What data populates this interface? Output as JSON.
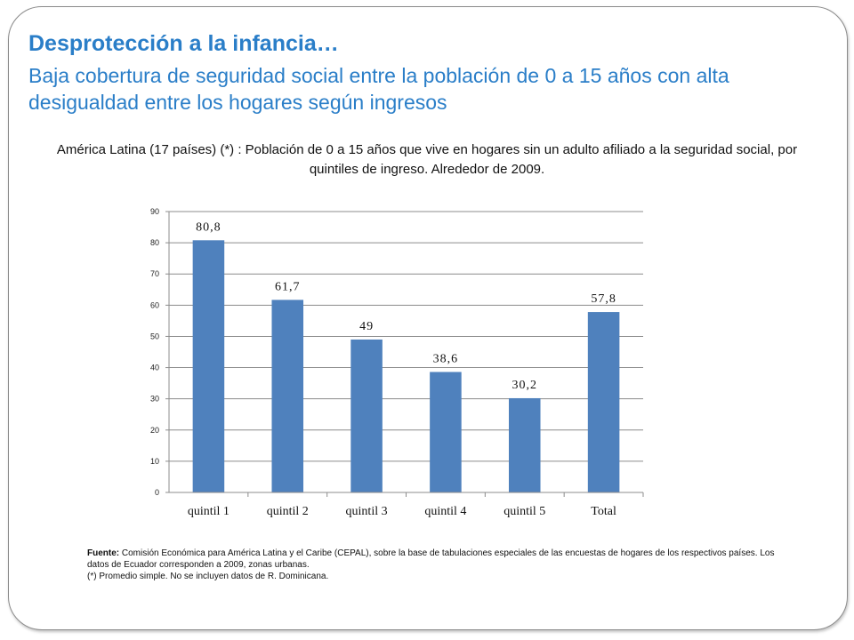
{
  "slide": {
    "title": "Desprotección a la infancia…",
    "subtitle": "Baja cobertura de seguridad social entre la población de 0 a 15 años con alta desigualdad entre los hogares según ingresos",
    "caption": "América Latina (17 países) (*) : Población de 0 a 15 años que vive en hogares sin un adulto afiliado a la seguridad social, por quintiles de ingreso. Alrededor de 2009."
  },
  "chart_data": {
    "type": "bar",
    "categories": [
      "quintil 1",
      "quintil 2",
      "quintil 3",
      "quintil 4",
      "quintil 5",
      "Total"
    ],
    "values": [
      80.8,
      61.7,
      49,
      38.6,
      30.2,
      57.8
    ],
    "data_labels": [
      "80,8",
      "61,7",
      "49",
      "38,6",
      "30,2",
      "57,8"
    ],
    "ylim": [
      0,
      90
    ],
    "yticks": [
      0,
      10,
      20,
      30,
      40,
      50,
      60,
      70,
      80,
      90
    ],
    "grid": true,
    "bar_color": "#4f81bd",
    "title": "",
    "xlabel": "",
    "ylabel": ""
  },
  "footnote": {
    "source_label": "Fuente:",
    "source_text": "Comisión Económica para América Latina y el Caribe (CEPAL), sobre la base de tabulaciones especiales de las encuestas de hogares de los respectivos países. Los datos de Ecuador corresponden a 2009, zonas urbanas.",
    "note": "(*) Promedio simple. No se incluyen datos de R. Dominicana."
  }
}
